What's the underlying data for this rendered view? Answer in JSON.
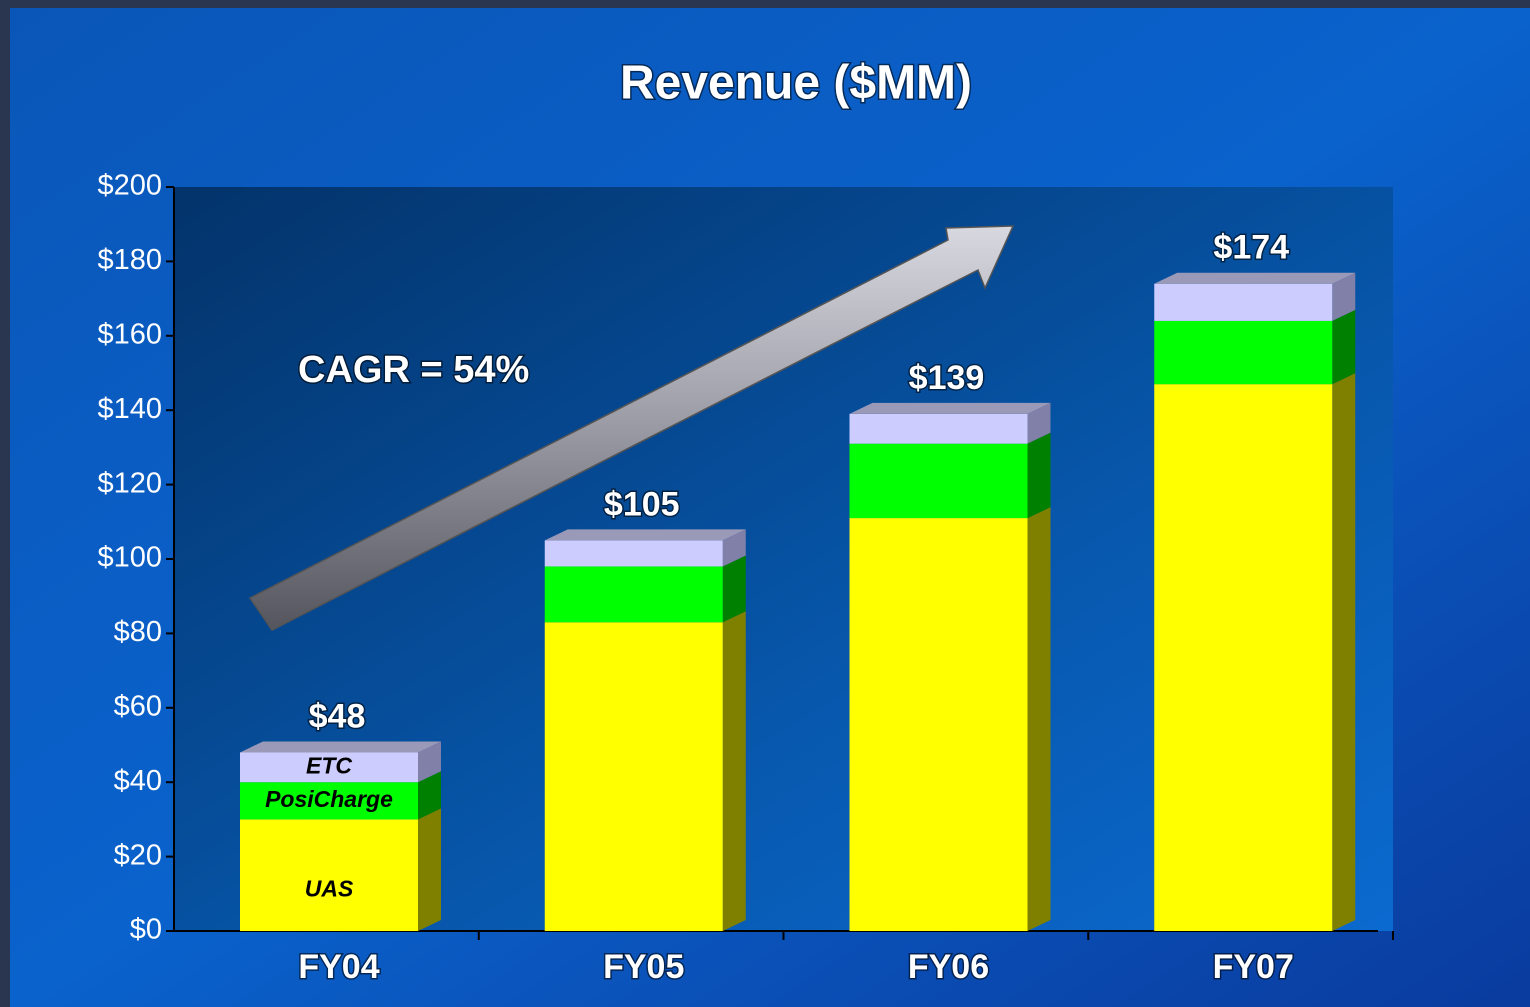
{
  "chart_data": {
    "type": "stacked-bar-3d",
    "title": "Revenue ($MM)",
    "annotation": "CAGR = 54%",
    "categories": [
      "FY04",
      "FY05",
      "FY06",
      "FY07"
    ],
    "series": [
      {
        "name": "UAS",
        "color": "#ffff00",
        "side_color": "#808000",
        "values": [
          30,
          83,
          111,
          147
        ]
      },
      {
        "name": "PosiCharge",
        "color": "#00ff00",
        "side_color": "#008000",
        "values": [
          10,
          15,
          20,
          17
        ]
      },
      {
        "name": "ETC",
        "color": "#ccccff",
        "side_color": "#8080a8",
        "values": [
          8,
          7,
          8,
          10
        ]
      }
    ],
    "totals": [
      48,
      105,
      139,
      174
    ],
    "total_labels": [
      "$48",
      "$105",
      "$139",
      "$174"
    ],
    "ylim": [
      0,
      200
    ],
    "yticks": [
      {
        "value": 0,
        "label": "$0"
      },
      {
        "value": 20,
        "label": "$20"
      },
      {
        "value": 40,
        "label": "$40"
      },
      {
        "value": 60,
        "label": "$60"
      },
      {
        "value": 80,
        "label": "$80"
      },
      {
        "value": 100,
        "label": "$100"
      },
      {
        "value": 120,
        "label": "$120"
      },
      {
        "value": 140,
        "label": "$140"
      },
      {
        "value": 160,
        "label": "$160"
      },
      {
        "value": 180,
        "label": "$180"
      },
      {
        "value": 200,
        "label": "$200"
      }
    ],
    "grid": false
  }
}
